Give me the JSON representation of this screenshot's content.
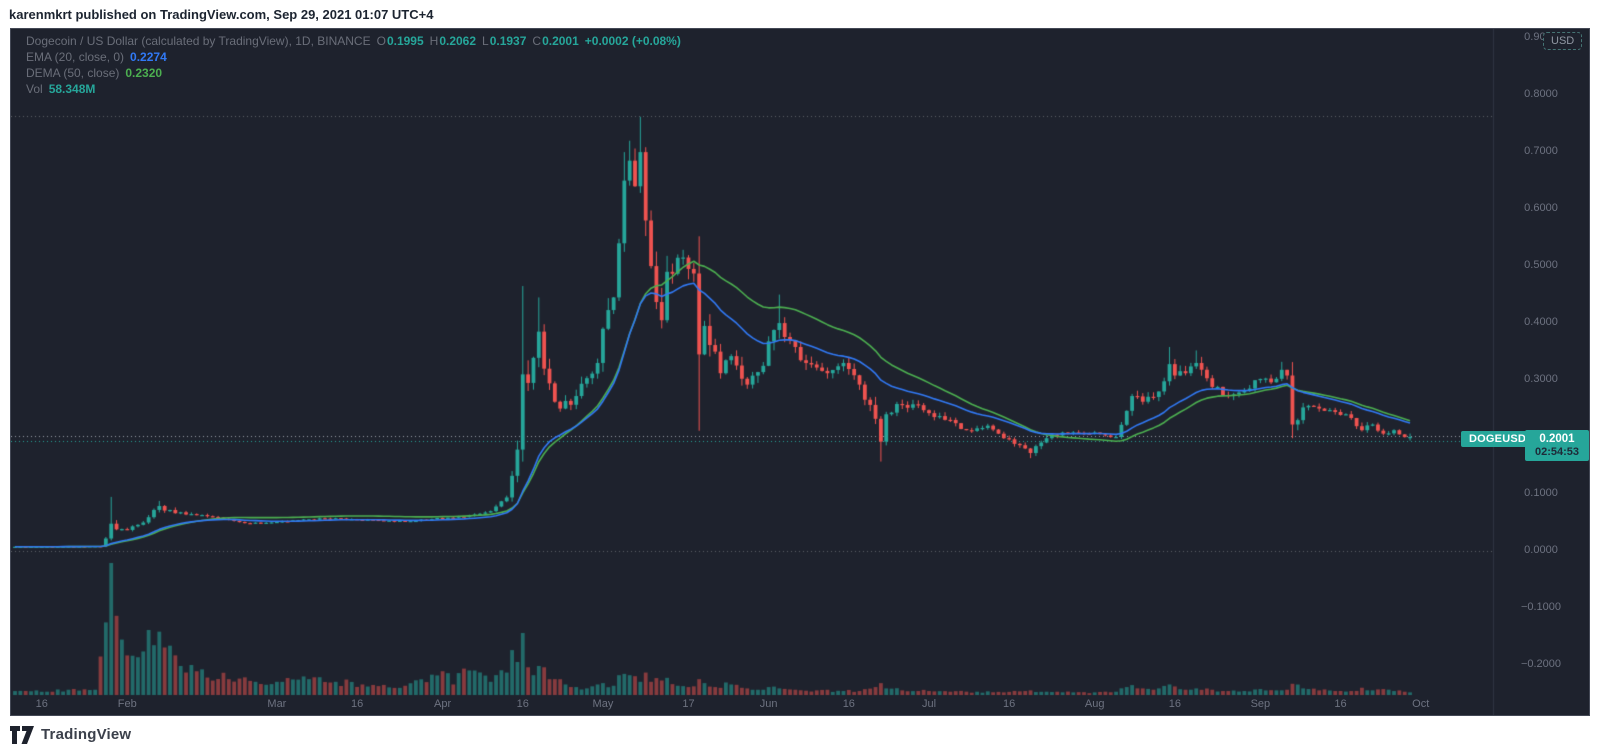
{
  "header": {
    "text": "karenmkrt published on TradingView.com, Sep 29, 2021 01:07 UTC+4"
  },
  "footer": {
    "brand": "TradingView"
  },
  "legend": {
    "symbol_title": "Dogecoin / US Dollar (calculated by TradingView), 1D, BINANCE",
    "ohlc": {
      "o_label": "O",
      "o": "0.1995",
      "h_label": "H",
      "h": "0.2062",
      "l_label": "L",
      "l": "0.1937",
      "c_label": "C",
      "c": "0.2001",
      "change": "+0.0002 (+0.08%)"
    },
    "ema": {
      "label": "EMA (20, close, 0)",
      "value": "0.2274"
    },
    "dema": {
      "label": "DEMA (50, close)",
      "value": "0.2320"
    },
    "vol": {
      "label": "Vol",
      "value": "58.348M"
    }
  },
  "price_scale": {
    "currency_button": "USD",
    "labels": [
      {
        "text": "0.9000",
        "price": 0.9
      },
      {
        "text": "0.8000",
        "price": 0.8
      },
      {
        "text": "0.7000",
        "price": 0.7
      },
      {
        "text": "0.6000",
        "price": 0.6
      },
      {
        "text": "0.5000",
        "price": 0.5
      },
      {
        "text": "0.4000",
        "price": 0.4
      },
      {
        "text": "0.3000",
        "price": 0.3
      },
      {
        "text": "0.1000",
        "price": 0.1
      },
      {
        "text": "0.0000",
        "price": 0.0
      },
      {
        "text": "−0.1000",
        "price": -0.1
      },
      {
        "text": "−0.2000",
        "price": -0.2
      }
    ],
    "price_tag": {
      "symbol": "DOGEUSD",
      "price": "0.2001",
      "countdown": "02:54:53"
    }
  },
  "time_scale": {
    "labels": [
      {
        "text": "16",
        "day": 5
      },
      {
        "text": "Feb",
        "day": 21
      },
      {
        "text": "Mar",
        "day": 49
      },
      {
        "text": "16",
        "day": 64
      },
      {
        "text": "Apr",
        "day": 80
      },
      {
        "text": "16",
        "day": 95
      },
      {
        "text": "May",
        "day": 110
      },
      {
        "text": "17",
        "day": 126
      },
      {
        "text": "Jun",
        "day": 141
      },
      {
        "text": "16",
        "day": 156
      },
      {
        "text": "Jul",
        "day": 171
      },
      {
        "text": "16",
        "day": 186
      },
      {
        "text": "Aug",
        "day": 202
      },
      {
        "text": "16",
        "day": 217
      },
      {
        "text": "Sep",
        "day": 233
      },
      {
        "text": "16",
        "day": 248
      },
      {
        "text": "Oct",
        "day": 263
      }
    ]
  },
  "colors": {
    "background": "#1e222d",
    "up": "#26a69a",
    "down": "#ef5350",
    "ema_blue": "#3179f5",
    "dema_green": "#4caf50",
    "axis_text": "#6d7280",
    "dotted_gray": "#5d6169"
  },
  "chart_data": {
    "type": "candlestick",
    "title": "Dogecoin / US Dollar (calculated by TradingView), 1D, BINANCE",
    "symbol": "DOGEUSD",
    "timeframe": "1D",
    "start_date": "2021-01-11",
    "end_date": "2021-09-29",
    "days": 262,
    "ylim": [
      -0.2526,
      0.916
    ],
    "grid": false,
    "price_lines": [
      {
        "price": 0.7632,
        "color": "#5d6169",
        "style": "dotted",
        "note": "all-time-high level"
      },
      {
        "price": 0.2018,
        "color": "#9aa0ab",
        "style": "dotted",
        "note": "level line"
      },
      {
        "price": 0.1937,
        "color": "#26a69a",
        "style": "dotted",
        "note": "price line"
      },
      {
        "price": 0.0,
        "color": "#5d6169",
        "style": "dotted",
        "note": "zero line"
      }
    ],
    "close_anchors": [
      [
        0,
        0.0075,
        0.08
      ],
      [
        16,
        0.0085,
        0.08
      ],
      [
        17,
        0.022,
        0.5
      ],
      [
        18,
        0.048,
        0.55
      ],
      [
        19,
        0.038,
        0.35
      ],
      [
        21,
        0.037,
        0.2
      ],
      [
        24,
        0.05,
        0.18
      ],
      [
        27,
        0.079,
        0.22
      ],
      [
        28,
        0.071,
        0.18
      ],
      [
        34,
        0.063,
        0.12
      ],
      [
        40,
        0.056,
        0.1
      ],
      [
        43,
        0.049,
        0.1
      ],
      [
        49,
        0.051,
        0.08
      ],
      [
        58,
        0.057,
        0.08
      ],
      [
        63,
        0.056,
        0.07
      ],
      [
        73,
        0.052,
        0.07
      ],
      [
        80,
        0.058,
        0.08
      ],
      [
        84,
        0.06,
        0.08
      ],
      [
        89,
        0.07,
        0.1
      ],
      [
        92,
        0.094,
        0.18
      ],
      [
        93,
        0.132,
        0.25
      ],
      [
        94,
        0.178,
        0.3
      ],
      [
        95,
        0.31,
        0.35
      ],
      [
        96,
        0.295,
        0.22
      ],
      [
        98,
        0.385,
        0.18
      ],
      [
        99,
        0.32,
        0.2
      ],
      [
        101,
        0.262,
        0.18
      ],
      [
        102,
        0.25,
        0.15
      ],
      [
        105,
        0.272,
        0.12
      ],
      [
        109,
        0.33,
        0.12
      ],
      [
        110,
        0.39,
        0.15
      ],
      [
        112,
        0.445,
        0.12
      ],
      [
        113,
        0.54,
        0.15
      ],
      [
        114,
        0.65,
        0.12
      ],
      [
        115,
        0.685,
        0.1
      ],
      [
        116,
        0.64,
        0.12
      ],
      [
        117,
        0.7,
        0.12
      ],
      [
        118,
        0.58,
        0.15
      ],
      [
        119,
        0.5,
        0.15
      ],
      [
        121,
        0.405,
        0.18
      ],
      [
        122,
        0.49,
        0.15
      ],
      [
        125,
        0.515,
        0.1
      ],
      [
        126,
        0.495,
        0.1
      ],
      [
        127,
        0.487,
        0.1
      ],
      [
        128,
        0.345,
        0.35
      ],
      [
        129,
        0.395,
        0.2
      ],
      [
        132,
        0.312,
        0.15
      ],
      [
        134,
        0.342,
        0.12
      ],
      [
        137,
        0.292,
        0.12
      ],
      [
        140,
        0.325,
        0.12
      ],
      [
        141,
        0.368,
        0.12
      ],
      [
        143,
        0.4,
        0.12
      ],
      [
        145,
        0.37,
        0.1
      ],
      [
        148,
        0.33,
        0.1
      ],
      [
        152,
        0.312,
        0.08
      ],
      [
        155,
        0.33,
        0.08
      ],
      [
        158,
        0.292,
        0.08
      ],
      [
        161,
        0.232,
        0.15
      ],
      [
        162,
        0.192,
        0.2
      ],
      [
        163,
        0.24,
        0.12
      ],
      [
        165,
        0.258,
        0.1
      ],
      [
        169,
        0.256,
        0.08
      ],
      [
        171,
        0.242,
        0.08
      ],
      [
        175,
        0.23,
        0.07
      ],
      [
        178,
        0.212,
        0.07
      ],
      [
        182,
        0.22,
        0.06
      ],
      [
        185,
        0.198,
        0.06
      ],
      [
        189,
        0.18,
        0.07
      ],
      [
        190,
        0.172,
        0.08
      ],
      [
        193,
        0.198,
        0.07
      ],
      [
        196,
        0.208,
        0.06
      ],
      [
        201,
        0.206,
        0.05
      ],
      [
        202,
        0.208,
        0.05
      ],
      [
        206,
        0.2,
        0.06
      ],
      [
        208,
        0.246,
        0.12
      ],
      [
        209,
        0.272,
        0.1
      ],
      [
        211,
        0.262,
        0.08
      ],
      [
        214,
        0.28,
        0.08
      ],
      [
        216,
        0.328,
        0.12
      ],
      [
        217,
        0.308,
        0.1
      ],
      [
        219,
        0.312,
        0.08
      ],
      [
        221,
        0.33,
        0.1
      ],
      [
        224,
        0.288,
        0.08
      ],
      [
        227,
        0.272,
        0.07
      ],
      [
        230,
        0.282,
        0.06
      ],
      [
        233,
        0.302,
        0.07
      ],
      [
        235,
        0.296,
        0.06
      ],
      [
        237,
        0.318,
        0.07
      ],
      [
        238,
        0.308,
        0.06
      ],
      [
        239,
        0.222,
        0.25
      ],
      [
        241,
        0.252,
        0.08
      ],
      [
        244,
        0.25,
        0.06
      ],
      [
        247,
        0.244,
        0.06
      ],
      [
        249,
        0.24,
        0.05
      ],
      [
        252,
        0.212,
        0.08
      ],
      [
        254,
        0.222,
        0.06
      ],
      [
        256,
        0.206,
        0.06
      ],
      [
        258,
        0.212,
        0.05
      ],
      [
        260,
        0.1999,
        0.04
      ],
      [
        261,
        0.2001,
        0.04
      ]
    ],
    "wick_overrides": {
      "18": {
        "h": 0.095
      },
      "27": {
        "h": 0.088
      },
      "95": {
        "h": 0.465
      },
      "98": {
        "h": 0.445
      },
      "114": {
        "h": 0.7
      },
      "115": {
        "h": 0.72
      },
      "117": {
        "h": 0.762
      },
      "128": {
        "l": 0.211
      },
      "143": {
        "h": 0.45
      },
      "162": {
        "l": 0.157
      },
      "190": {
        "l": 0.163
      },
      "216": {
        "h": 0.358
      },
      "221": {
        "h": 0.352
      },
      "237": {
        "h": 0.332
      },
      "239": {
        "l": 0.198
      }
    },
    "last_candle": {
      "o": 0.1995,
      "h": 0.2062,
      "l": 0.1937,
      "c": 0.2001
    },
    "last_volume_label": "58.348M",
    "volume_anchors": [
      [
        0,
        0.03
      ],
      [
        15,
        0.04
      ],
      [
        17,
        0.55
      ],
      [
        18,
        1.0
      ],
      [
        19,
        0.6
      ],
      [
        20,
        0.42
      ],
      [
        21,
        0.3
      ],
      [
        24,
        0.33
      ],
      [
        27,
        0.48
      ],
      [
        28,
        0.36
      ],
      [
        31,
        0.22
      ],
      [
        34,
        0.18
      ],
      [
        40,
        0.12
      ],
      [
        45,
        0.1
      ],
      [
        49,
        0.1
      ],
      [
        55,
        0.12
      ],
      [
        60,
        0.1
      ],
      [
        65,
        0.08
      ],
      [
        73,
        0.07
      ],
      [
        80,
        0.18
      ],
      [
        82,
        0.08
      ],
      [
        84,
        0.2
      ],
      [
        89,
        0.1
      ],
      [
        92,
        0.17
      ],
      [
        93,
        0.34
      ],
      [
        94,
        0.25
      ],
      [
        95,
        0.47
      ],
      [
        96,
        0.21
      ],
      [
        97,
        0.15
      ],
      [
        98,
        0.22
      ],
      [
        99,
        0.21
      ],
      [
        101,
        0.12
      ],
      [
        103,
        0.08
      ],
      [
        105,
        0.06
      ],
      [
        107,
        0.05
      ],
      [
        109,
        0.08
      ],
      [
        110,
        0.09
      ],
      [
        112,
        0.07
      ],
      [
        113,
        0.15
      ],
      [
        114,
        0.16
      ],
      [
        115,
        0.15
      ],
      [
        117,
        0.1
      ],
      [
        118,
        0.17
      ],
      [
        119,
        0.1
      ],
      [
        121,
        0.11
      ],
      [
        122,
        0.13
      ],
      [
        124,
        0.07
      ],
      [
        126,
        0.06
      ],
      [
        128,
        0.12
      ],
      [
        129,
        0.09
      ],
      [
        131,
        0.06
      ],
      [
        134,
        0.08
      ],
      [
        137,
        0.05
      ],
      [
        140,
        0.04
      ],
      [
        141,
        0.06
      ],
      [
        143,
        0.05
      ],
      [
        146,
        0.04
      ],
      [
        150,
        0.035
      ],
      [
        155,
        0.03
      ],
      [
        158,
        0.03
      ],
      [
        161,
        0.06
      ],
      [
        162,
        0.09
      ],
      [
        163,
        0.05
      ],
      [
        166,
        0.035
      ],
      [
        169,
        0.03
      ],
      [
        171,
        0.03
      ],
      [
        175,
        0.025
      ],
      [
        180,
        0.025
      ],
      [
        185,
        0.02
      ],
      [
        189,
        0.03
      ],
      [
        190,
        0.035
      ],
      [
        193,
        0.025
      ],
      [
        198,
        0.02
      ],
      [
        202,
        0.02
      ],
      [
        206,
        0.025
      ],
      [
        208,
        0.06
      ],
      [
        209,
        0.075
      ],
      [
        211,
        0.05
      ],
      [
        214,
        0.05
      ],
      [
        216,
        0.08
      ],
      [
        217,
        0.065
      ],
      [
        219,
        0.04
      ],
      [
        221,
        0.05
      ],
      [
        224,
        0.04
      ],
      [
        227,
        0.03
      ],
      [
        230,
        0.03
      ],
      [
        233,
        0.045
      ],
      [
        236,
        0.035
      ],
      [
        238,
        0.04
      ],
      [
        239,
        0.085
      ],
      [
        241,
        0.05
      ],
      [
        244,
        0.035
      ],
      [
        247,
        0.03
      ],
      [
        250,
        0.03
      ],
      [
        252,
        0.055
      ],
      [
        254,
        0.035
      ],
      [
        256,
        0.045
      ],
      [
        258,
        0.03
      ],
      [
        260,
        0.025
      ],
      [
        261,
        0.02
      ]
    ],
    "overlays": [
      {
        "type": "ema",
        "length": 20,
        "value": "0.2274"
      },
      {
        "type": "dema",
        "length": 50,
        "value": "0.2320"
      }
    ]
  }
}
